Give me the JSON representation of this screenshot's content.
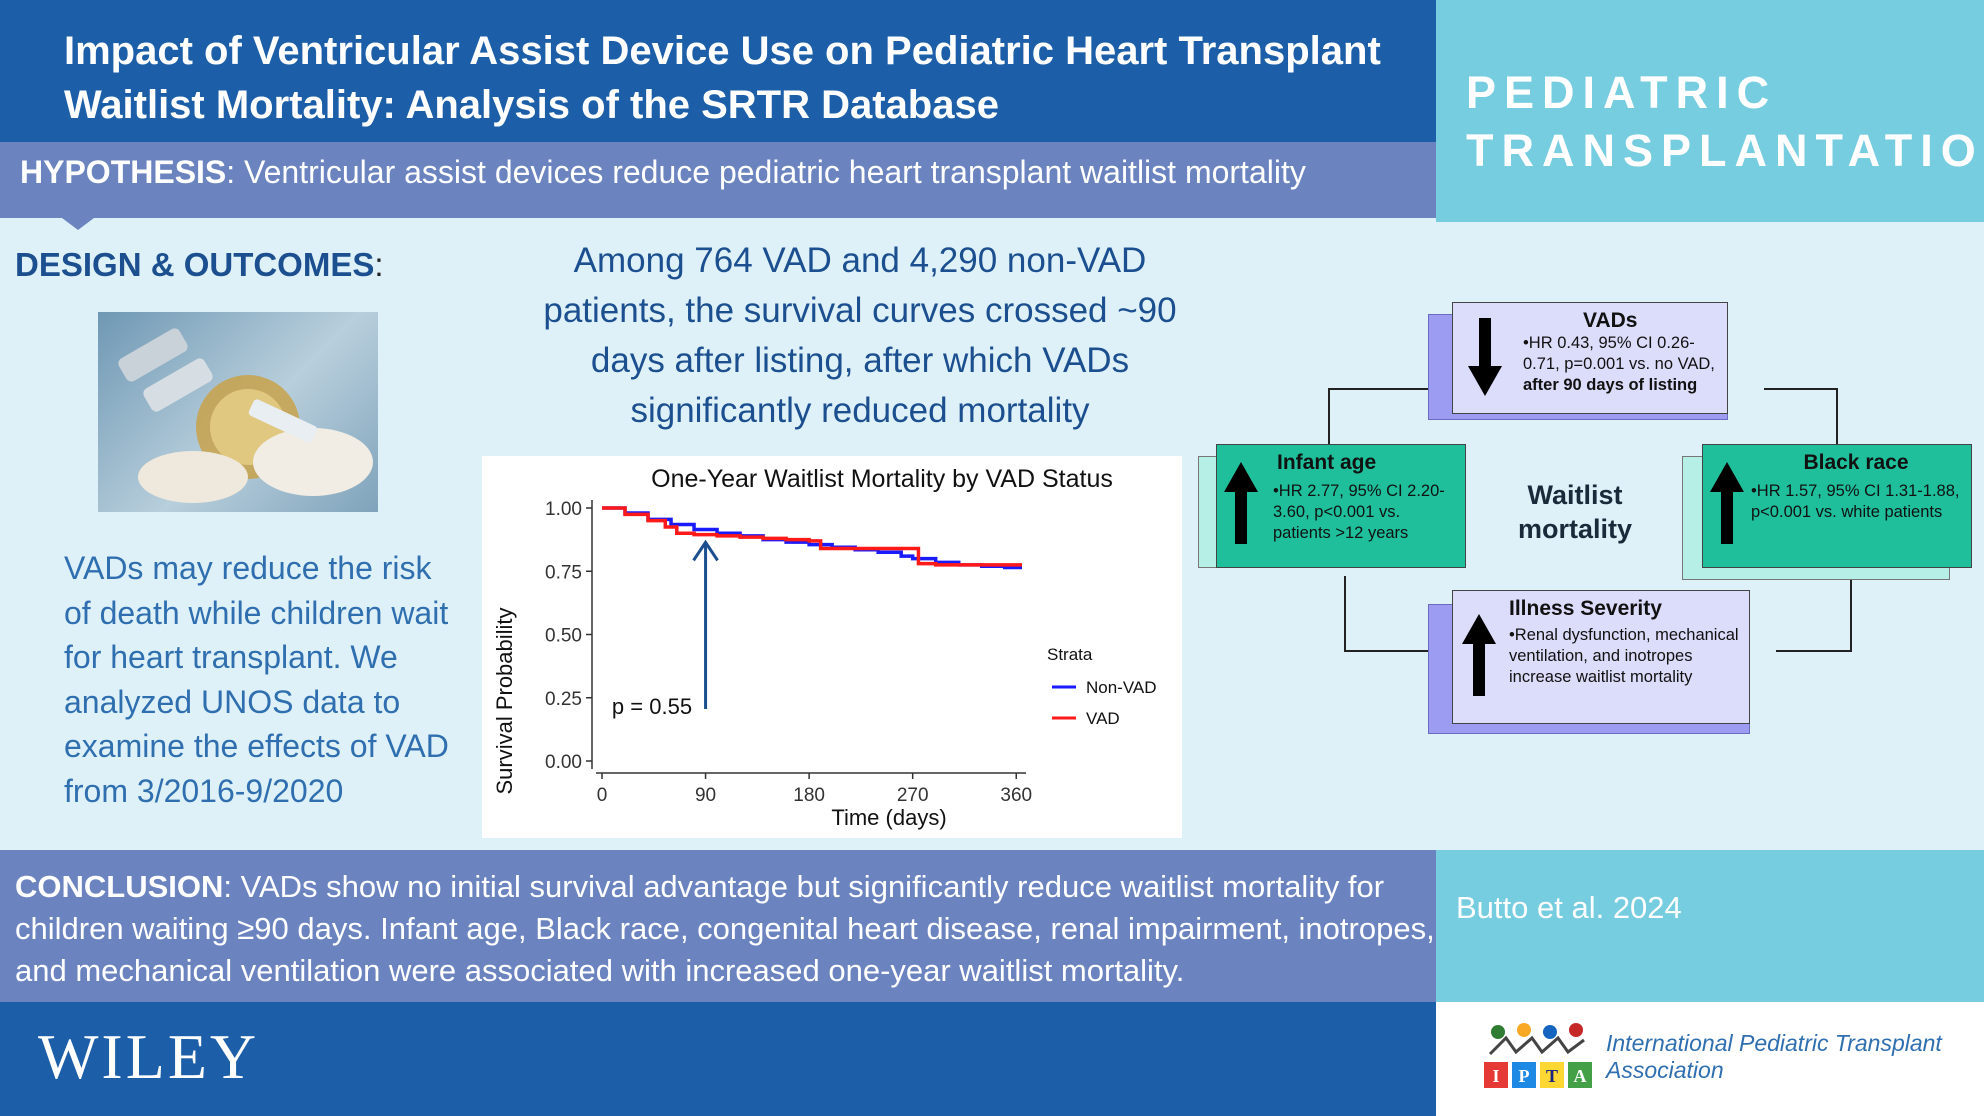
{
  "header": {
    "title": "Impact of Ventricular Assist Device Use on Pediatric Heart Transplant Waitlist Mortality: Analysis of the SRTR Database",
    "journal_line1": "PEDIATRIC",
    "journal_line2": "TRANSPLANTATION"
  },
  "hypothesis": {
    "label": "HYPOTHESIS",
    "text": ": Ventricular assist devices reduce pediatric heart transplant waitlist mortality"
  },
  "design": {
    "label": "DESIGN & OUTCOMES",
    "colon": ":",
    "intro": "VADs may reduce the risk of death while children wait for heart transplant. We analyzed UNOS data to examine the effects of VAD from 3/2016-9/2020",
    "finding": "Among 764 VAD and 4,290 non-VAD patients, the survival curves crossed ~90 days after listing, after which VADs significantly reduced mortality"
  },
  "chart_data": {
    "type": "line",
    "title": "One-Year Waitlist Mortality by VAD Status",
    "xlabel": "Time (days)",
    "ylabel": "Survival Probability",
    "xlim": [
      0,
      365
    ],
    "ylim": [
      0,
      1
    ],
    "xticks": [
      "0",
      "90",
      "180",
      "270",
      "360"
    ],
    "yticks": [
      "0.00",
      "0.25",
      "0.50",
      "0.75",
      "1.00"
    ],
    "legend_title": "Strata",
    "legend_position": "right",
    "annotation": "p = 0.55",
    "series": [
      {
        "name": "Non-VAD",
        "color": "#1a1aff",
        "x": [
          0,
          20,
          40,
          60,
          80,
          100,
          120,
          140,
          160,
          180,
          200,
          220,
          240,
          260,
          270,
          290,
          310,
          330,
          350,
          365
        ],
        "y": [
          1.0,
          0.98,
          0.955,
          0.935,
          0.915,
          0.9,
          0.89,
          0.875,
          0.865,
          0.855,
          0.845,
          0.835,
          0.825,
          0.81,
          0.8,
          0.785,
          0.775,
          0.77,
          0.765,
          0.765
        ]
      },
      {
        "name": "VAD",
        "color": "#ff1a1a",
        "x": [
          0,
          20,
          40,
          55,
          65,
          80,
          100,
          120,
          140,
          160,
          180,
          190,
          210,
          230,
          250,
          270,
          275,
          290,
          310,
          330,
          350,
          365
        ],
        "y": [
          1.0,
          0.975,
          0.95,
          0.925,
          0.9,
          0.895,
          0.89,
          0.885,
          0.88,
          0.875,
          0.87,
          0.84,
          0.84,
          0.84,
          0.84,
          0.84,
          0.78,
          0.775,
          0.775,
          0.775,
          0.775,
          0.775
        ]
      }
    ],
    "arrow_at_x": 90
  },
  "diagram": {
    "center": "Waitlist mortality",
    "vads": {
      "title": "VADs",
      "arrow": "down",
      "body_pre": "•HR 0.43, 95% CI 0.26-0.71, p=0.001 vs. no VAD, ",
      "body_bold": "after 90 days of listing"
    },
    "infant": {
      "title": "Infant age",
      "arrow": "up",
      "body": "•HR 2.77, 95% CI 2.20-3.60, p<0.001 vs. patients >12 years"
    },
    "black": {
      "title": "Black race",
      "arrow": "up",
      "body": "•HR 1.57, 95% CI 1.31-1.88, p<0.001 vs. white patients"
    },
    "illness": {
      "title": "Illness Severity",
      "arrow": "up",
      "body": "•Renal dysfunction, mechanical ventilation, and inotropes increase waitlist mortality"
    }
  },
  "conclusion": {
    "label": "CONCLUSION",
    "text": ": VADs show no initial survival advantage but significantly reduce waitlist mortality for children waiting ≥90 days. Infant age, Black race, congenital heart disease, renal impairment, inotropes, and mechanical ventilation were associated with increased one-year waitlist mortality."
  },
  "citation": "Butto et al. 2024",
  "footer": {
    "publisher": "WILEY",
    "ipta_letters": [
      "I",
      "P",
      "T",
      "A"
    ],
    "ipta_name": "International Pediatric Transplant Association"
  },
  "colors": {
    "header_blue": "#1c5fa8",
    "band_purple": "#6b84c0",
    "cyan": "#76cde0",
    "lavender_box": "#dcdcfb",
    "teal_box": "#1fbf9c"
  }
}
